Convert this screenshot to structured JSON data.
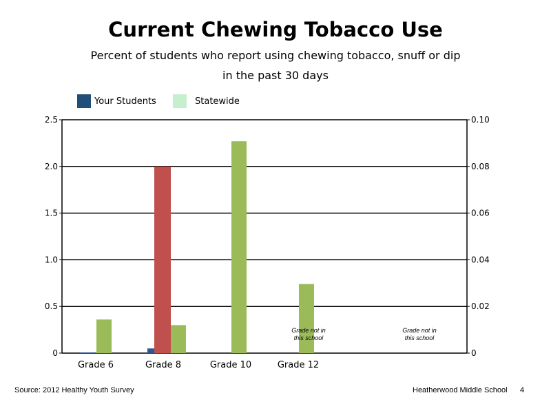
{
  "chart_data": {
    "type": "bar",
    "title": "Current Chewing Tobacco Use",
    "subtitle": [
      "Percent of students who report using chewing tobacco, snuff or dip",
      "in the past 30 days"
    ],
    "categories": [
      "Grade 6",
      "Grade 8",
      "Grade 10",
      "Grade 12"
    ],
    "series": [
      {
        "name": "Your Students",
        "axis": "right",
        "color": "#2f5597",
        "values": [
          0.0,
          0.002,
          null,
          null
        ]
      },
      {
        "name": "Statewide",
        "axis": "left",
        "color": "#9bbb59",
        "values": [
          0.36,
          0.3,
          2.27,
          0.74
        ]
      }
    ],
    "extra_bar": {
      "category": "Grade 8",
      "axis": "left",
      "color": "#c0504d",
      "value": 2.0
    },
    "legend": {
      "placement": "top-left",
      "items": [
        {
          "label": "Your Students",
          "color": "#1f4e79"
        },
        {
          "label": "Statewide",
          "color": "#c6efce"
        }
      ]
    },
    "ylim_left": [
      0,
      2.5
    ],
    "ylim_right": [
      0,
      0.1
    ],
    "left_ticks": [
      "0",
      "0.5",
      "1.0",
      "1.5",
      "2.0",
      "2.5"
    ],
    "right_ticks": [
      "0",
      "0.02",
      "0.04",
      "0.06",
      "0.08",
      "0.10"
    ],
    "grid": true,
    "notes": [
      {
        "lines": [
          "Grade not in",
          "this school"
        ]
      },
      {
        "lines": [
          "Grade not in",
          "this school"
        ]
      }
    ]
  },
  "footer": {
    "source": "Source: 2012 Healthy Youth Survey",
    "school": "Heatherwood Middle  School",
    "page_number": "4"
  }
}
